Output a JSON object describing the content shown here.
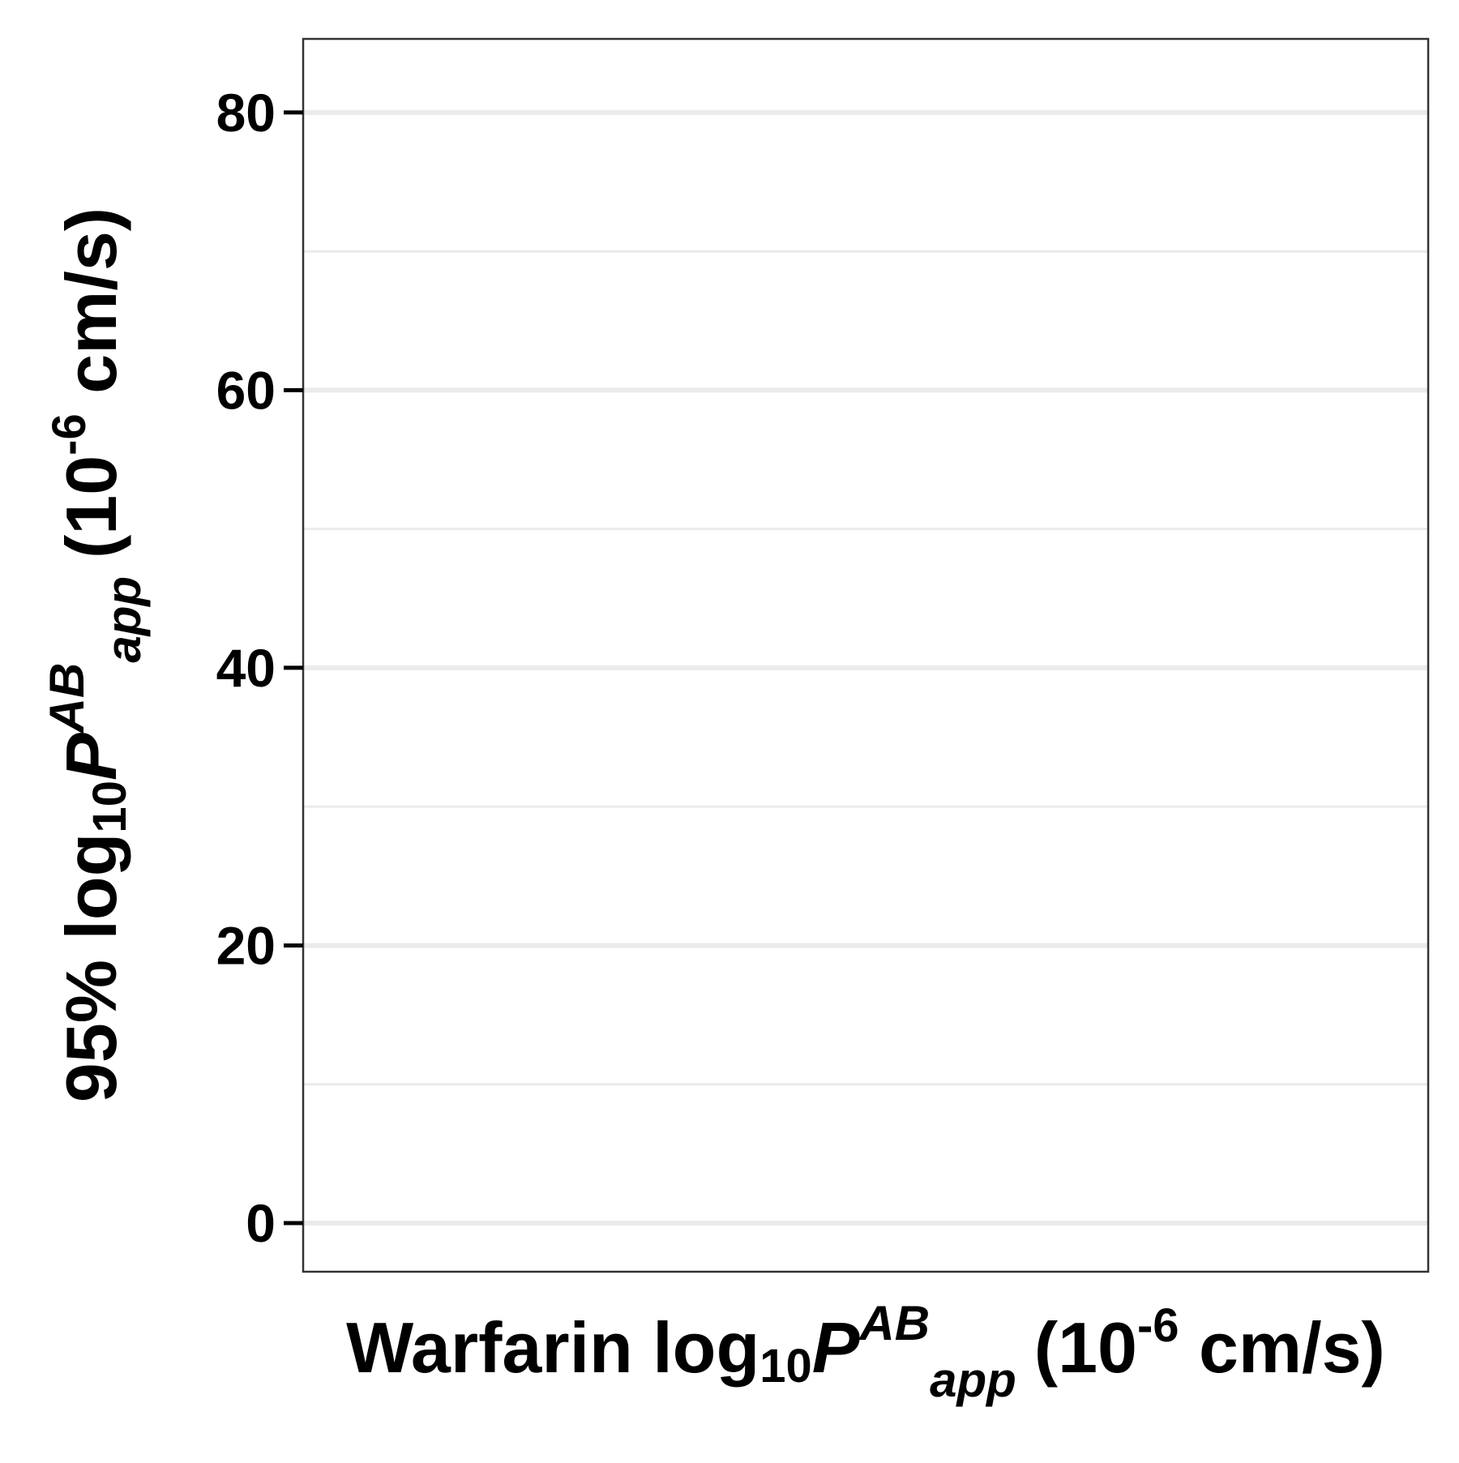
{
  "chart_data": {
    "type": "scatter",
    "series": [],
    "xlabel": {
      "prefix": "Warfarin log",
      "log_base": "10",
      "symbol": "P",
      "superscript": "AB",
      "subscript": "app",
      "unit_open": "(10",
      "unit_exponent": "-6",
      "unit_close": " cm/s)"
    },
    "ylabel": {
      "prefix": "95% log",
      "log_base": "10",
      "symbol": "P",
      "superscript": "AB",
      "subscript": "app",
      "unit_open": "(10",
      "unit_exponent": "-6",
      "unit_close": " cm/s)"
    },
    "ylim": [
      -3.5,
      85.3
    ],
    "y_ticks": [
      0,
      20,
      40,
      60,
      80
    ],
    "y_tick_labels": [
      "0",
      "20",
      "40",
      "60",
      "80"
    ],
    "y_minor_gridlines": [
      10,
      30,
      50,
      70
    ],
    "x_ticks": [],
    "grid": "horizontal only",
    "legend": "none"
  },
  "colors": {
    "background": "#ffffff",
    "panel_border": "#333333",
    "major_grid": "#ebebeb",
    "minor_grid": "#ebebeb",
    "text": "#000000",
    "ticks": "#000000"
  }
}
